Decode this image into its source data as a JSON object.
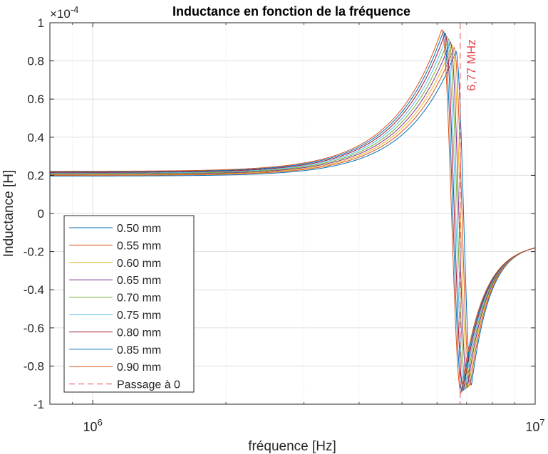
{
  "chart_data": {
    "type": "line",
    "title": "Inductance en fonction de la fréquence",
    "xlabel": "fréquence [Hz]",
    "ylabel": "Inductance [H]",
    "x_scale": "log",
    "xlim": [
      800000,
      10000000
    ],
    "ylim": [
      -1,
      1
    ],
    "y_exponent_label": "×10",
    "y_exponent_power": "-4",
    "grid": true,
    "minor_grid": true,
    "legend_position": "bottom-left",
    "x_ticks": [
      {
        "value": 1000000,
        "base": "10",
        "power": "6"
      },
      {
        "value": 10000000,
        "base": "10",
        "power": "7"
      }
    ],
    "y_ticks": [
      {
        "value": 1,
        "label": "1"
      },
      {
        "value": 0.8,
        "label": "0.8"
      },
      {
        "value": 0.6,
        "label": "0.6"
      },
      {
        "value": 0.4,
        "label": "0.4"
      },
      {
        "value": 0.2,
        "label": "0.2"
      },
      {
        "value": 0,
        "label": "0"
      },
      {
        "value": -0.2,
        "label": "-0.2"
      },
      {
        "value": -0.4,
        "label": "-0.4"
      },
      {
        "value": -0.6,
        "label": "-0.6"
      },
      {
        "value": -0.8,
        "label": "-0.8"
      },
      {
        "value": -1,
        "label": "-1"
      }
    ],
    "series": [
      {
        "name": "0.50 mm",
        "color": "#0072BD",
        "low_freq_value": 0.196,
        "peak_freq": 6620000,
        "peak_value": 0.85,
        "trough_freq": 7180000,
        "trough_value": -0.9,
        "end_value": -0.155
      },
      {
        "name": "0.55 mm",
        "color": "#D95319",
        "low_freq_value": 0.2,
        "peak_freq": 6555000,
        "peak_value": 0.87,
        "trough_freq": 7130000,
        "trough_value": -0.905,
        "end_value": -0.155
      },
      {
        "name": "0.60 mm",
        "color": "#EDB120",
        "low_freq_value": 0.203,
        "peak_freq": 6490000,
        "peak_value": 0.885,
        "trough_freq": 7080000,
        "trough_value": -0.91,
        "end_value": -0.155
      },
      {
        "name": "0.65 mm",
        "color": "#7E2F8E",
        "low_freq_value": 0.206,
        "peak_freq": 6430000,
        "peak_value": 0.9,
        "trough_freq": 7030000,
        "trough_value": -0.915,
        "end_value": -0.155
      },
      {
        "name": "0.70 mm",
        "color": "#77AC30",
        "low_freq_value": 0.209,
        "peak_freq": 6370000,
        "peak_value": 0.915,
        "trough_freq": 6980000,
        "trough_value": -0.92,
        "end_value": -0.155
      },
      {
        "name": "0.75 mm",
        "color": "#4DBEEE",
        "low_freq_value": 0.212,
        "peak_freq": 6310000,
        "peak_value": 0.93,
        "trough_freq": 6930000,
        "trough_value": -0.925,
        "end_value": -0.155
      },
      {
        "name": "0.80 mm",
        "color": "#A2142F",
        "low_freq_value": 0.215,
        "peak_freq": 6255000,
        "peak_value": 0.945,
        "trough_freq": 6885000,
        "trough_value": -0.93,
        "end_value": -0.155
      },
      {
        "name": "0.85 mm",
        "color": "#0072BD",
        "low_freq_value": 0.218,
        "peak_freq": 6200000,
        "peak_value": 0.955,
        "trough_freq": 6840000,
        "trough_value": -0.935,
        "end_value": -0.155
      },
      {
        "name": "0.90 mm",
        "color": "#D95319",
        "low_freq_value": 0.221,
        "peak_freq": 6150000,
        "peak_value": 0.965,
        "trough_freq": 6800000,
        "trough_value": -0.94,
        "end_value": -0.155
      }
    ],
    "vertical_line": {
      "name": "Passage à 0",
      "x": 6770000,
      "label": "6,77 MHz",
      "color": "#E8474F",
      "style": "dashed"
    }
  }
}
